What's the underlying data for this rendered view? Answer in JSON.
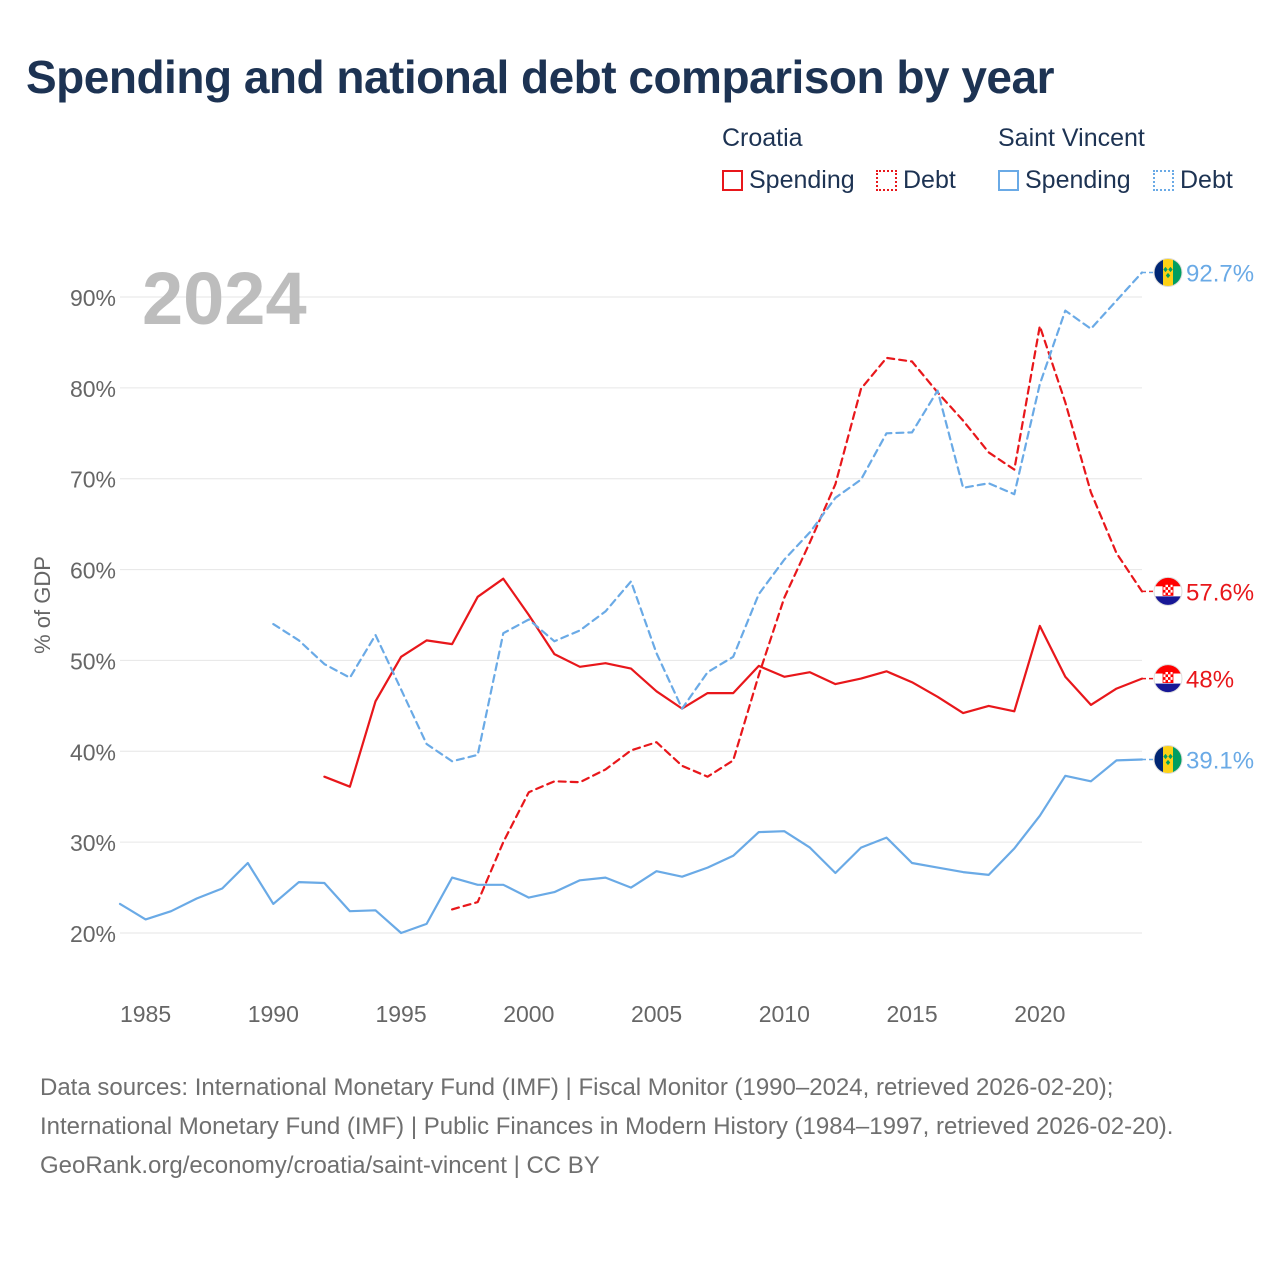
{
  "title": "Spending and national debt comparison by year",
  "legend": {
    "group1": "Croatia",
    "group2": "Saint Vincent",
    "spending": "Spending",
    "debt": "Debt"
  },
  "year_label": "2024",
  "footer": {
    "sources": "Data sources: International Monetary Fund (IMF) | Fiscal Monitor (1990–2024, retrieved 2026-02-20); International Monetary Fund (IMF) | Public Finances in Modern History (1984–1997, retrieved 2026-02-20).",
    "credit": "GeoRank.org/economy/croatia/saint-vincent | CC BY"
  },
  "colors": {
    "croatia": "#e8171b",
    "saint_vincent": "#6aaae6",
    "title": "#1d3353",
    "grid": "#e6e6e6",
    "axis_text": "#666666"
  },
  "chart_data": {
    "type": "line",
    "title": "Spending and national debt comparison by year",
    "ylabel": "% of GDP",
    "xlabel": "",
    "xlim": [
      1984,
      2024
    ],
    "ylim": [
      15,
      95
    ],
    "x_ticks": [
      1985,
      1990,
      1995,
      2000,
      2005,
      2010,
      2015,
      2020
    ],
    "y_ticks": [
      20,
      30,
      40,
      50,
      60,
      70,
      80,
      90
    ],
    "y_tick_labels": [
      "20%",
      "30%",
      "40%",
      "50%",
      "60%",
      "70%",
      "80%",
      "90%"
    ],
    "series": [
      {
        "name": "Croatia Spending",
        "country": "Croatia",
        "metric": "Spending",
        "style": "solid",
        "color": "#e8171b",
        "end_label": "48%",
        "x": [
          1992,
          1993,
          1994,
          1995,
          1996,
          1997,
          1998,
          1999,
          2000,
          2001,
          2002,
          2003,
          2004,
          2005,
          2006,
          2007,
          2008,
          2009,
          2010,
          2011,
          2012,
          2013,
          2014,
          2015,
          2016,
          2017,
          2018,
          2019,
          2020,
          2021,
          2022,
          2023,
          2024
        ],
        "values": [
          37.2,
          36.1,
          45.5,
          50.4,
          52.2,
          51.8,
          57.0,
          59.0,
          55.0,
          50.7,
          49.3,
          49.7,
          49.1,
          46.6,
          44.7,
          46.4,
          46.4,
          49.4,
          48.2,
          48.7,
          47.4,
          48.0,
          48.8,
          47.6,
          46.0,
          44.2,
          45.0,
          44.4,
          53.8,
          48.2,
          45.1,
          46.9,
          48.0
        ]
      },
      {
        "name": "Croatia Debt",
        "country": "Croatia",
        "metric": "Debt",
        "style": "dashed",
        "color": "#e8171b",
        "end_label": "57.6%",
        "x": [
          1997,
          1998,
          1999,
          2000,
          2001,
          2002,
          2003,
          2004,
          2005,
          2006,
          2007,
          2008,
          2009,
          2010,
          2011,
          2012,
          2013,
          2014,
          2015,
          2016,
          2017,
          2018,
          2019,
          2020,
          2021,
          2022,
          2023,
          2024
        ],
        "values": [
          22.6,
          23.4,
          30.0,
          35.5,
          36.7,
          36.6,
          38.0,
          40.1,
          41.0,
          38.4,
          37.2,
          39.0,
          48.4,
          56.9,
          63.0,
          69.4,
          79.9,
          83.3,
          82.9,
          79.5,
          76.4,
          72.9,
          71.0,
          86.8,
          78.4,
          68.5,
          61.8,
          57.6
        ]
      },
      {
        "name": "Saint Vincent Spending",
        "country": "Saint Vincent",
        "metric": "Spending",
        "style": "solid",
        "color": "#6aaae6",
        "end_label": "39.1%",
        "x": [
          1984,
          1985,
          1986,
          1987,
          1988,
          1989,
          1990,
          1991,
          1992,
          1993,
          1994,
          1995,
          1996,
          1997,
          1998,
          1999,
          2000,
          2001,
          2002,
          2003,
          2004,
          2005,
          2006,
          2007,
          2008,
          2009,
          2010,
          2011,
          2012,
          2013,
          2014,
          2015,
          2016,
          2017,
          2018,
          2019,
          2020,
          2021,
          2022,
          2023,
          2024
        ],
        "values": [
          23.2,
          21.5,
          22.4,
          23.8,
          24.9,
          27.7,
          23.2,
          25.6,
          25.5,
          22.4,
          22.5,
          20.0,
          21.0,
          26.1,
          25.3,
          25.3,
          23.9,
          24.5,
          25.8,
          26.1,
          25.0,
          26.8,
          26.2,
          27.2,
          28.5,
          31.1,
          31.2,
          29.4,
          26.6,
          29.4,
          30.5,
          27.7,
          27.2,
          26.7,
          26.4,
          29.3,
          32.9,
          37.3,
          36.7,
          39.0,
          39.1
        ]
      },
      {
        "name": "Saint Vincent Debt",
        "country": "Saint Vincent",
        "metric": "Debt",
        "style": "dashed",
        "color": "#6aaae6",
        "end_label": "92.7%",
        "x": [
          1990,
          1991,
          1992,
          1993,
          1994,
          1995,
          1996,
          1997,
          1998,
          1999,
          2000,
          2001,
          2002,
          2003,
          2004,
          2005,
          2006,
          2007,
          2008,
          2009,
          2010,
          2011,
          2012,
          2013,
          2014,
          2015,
          2016,
          2017,
          2018,
          2019,
          2020,
          2021,
          2022,
          2023,
          2024
        ],
        "values": [
          54.0,
          52.2,
          49.6,
          48.1,
          52.8,
          46.8,
          40.8,
          38.9,
          39.6,
          53.0,
          54.5,
          52.1,
          53.3,
          55.4,
          58.7,
          50.8,
          44.7,
          48.7,
          50.4,
          57.3,
          61.1,
          64.1,
          67.9,
          69.9,
          75.0,
          75.1,
          79.7,
          69.0,
          69.5,
          68.3,
          80.4,
          88.5,
          86.5,
          89.6,
          92.7
        ]
      }
    ]
  }
}
